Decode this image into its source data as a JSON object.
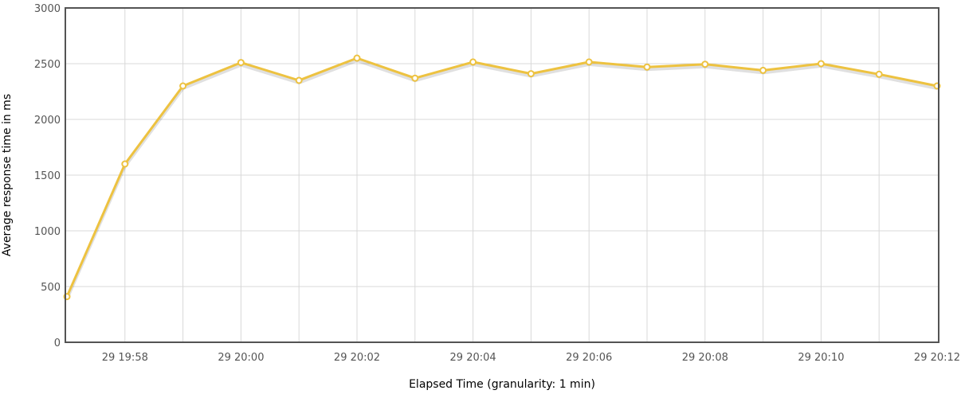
{
  "chart_data": {
    "type": "line",
    "title": "",
    "xlabel": "Elapsed Time (granularity: 1 min)",
    "ylabel": "Average response time in ms",
    "ylim": [
      0,
      3000
    ],
    "grid": true,
    "x_tick_labels": [
      "29 19:58",
      "29 20:00",
      "29 20:02",
      "29 20:04",
      "29 20:06",
      "29 20:08",
      "29 20:10",
      "29 20:12"
    ],
    "y_tick_labels": [
      "0",
      "500",
      "1000",
      "1500",
      "2000",
      "2500",
      "3000"
    ],
    "x": [
      "29 19:57",
      "29 19:58",
      "29 19:59",
      "29 20:00",
      "29 20:01",
      "29 20:02",
      "29 20:03",
      "29 20:04",
      "29 20:05",
      "29 20:06",
      "29 20:07",
      "29 20:08",
      "29 20:09",
      "29 20:10",
      "29 20:11",
      "29 20:12"
    ],
    "series": [
      {
        "color": "#edc240",
        "values": [
          410,
          1600,
          2300,
          2510,
          2350,
          2550,
          2370,
          2515,
          2410,
          2515,
          2470,
          2495,
          2440,
          2500,
          2405,
          2300
        ]
      }
    ]
  }
}
